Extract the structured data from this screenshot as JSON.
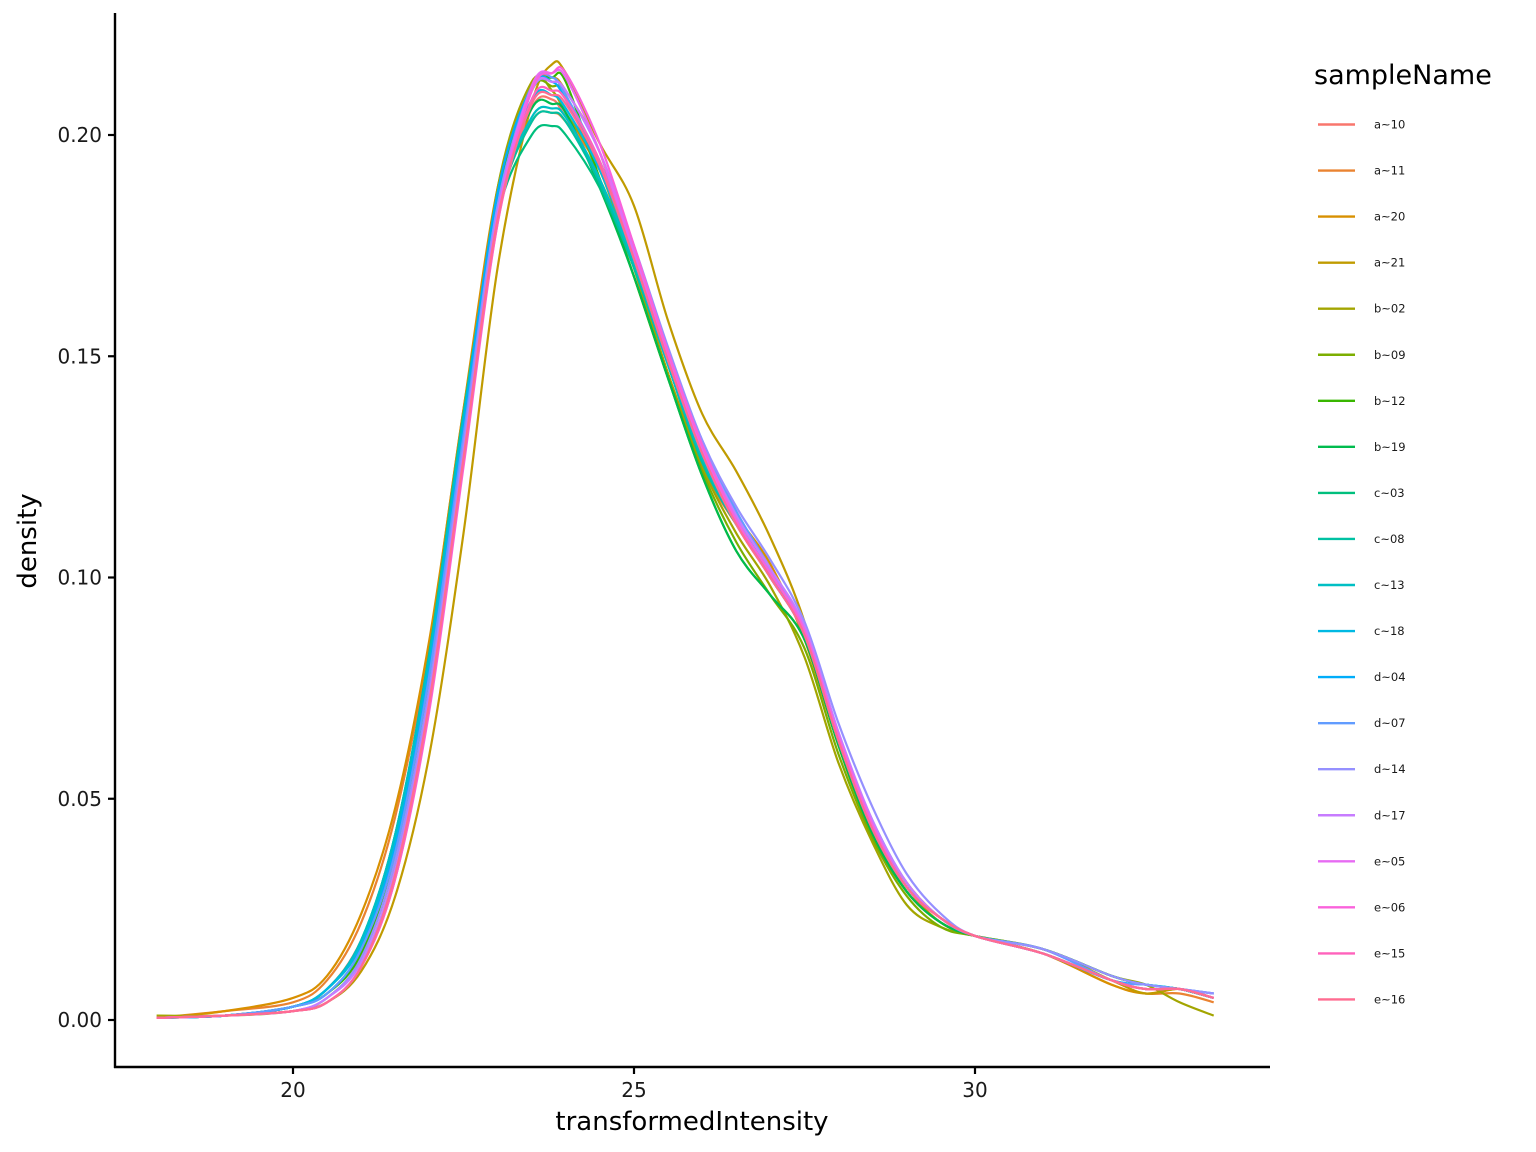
{
  "chart_data": {
    "type": "line",
    "subtype": "density",
    "title": "",
    "xlabel": "transformedIntensity",
    "ylabel": "density",
    "xlim": [
      17.2,
      34.2
    ],
    "ylim": [
      -0.011,
      0.227
    ],
    "x_ticks": [
      20,
      25,
      30
    ],
    "x_tick_labels": [
      "20",
      "25",
      "30"
    ],
    "y_ticks": [
      0.0,
      0.05,
      0.1,
      0.15,
      0.2
    ],
    "y_tick_labels": [
      "0.00",
      "0.05",
      "0.10",
      "0.15",
      "0.20"
    ],
    "grid": false,
    "legend": {
      "title": "sampleName",
      "position": "right"
    },
    "x": [
      18.0,
      19.0,
      20.0,
      20.5,
      21.0,
      21.5,
      22.0,
      22.5,
      23.0,
      23.5,
      23.8,
      24.0,
      24.5,
      25.0,
      25.5,
      26.0,
      26.5,
      27.0,
      27.5,
      28.0,
      28.5,
      29.0,
      29.5,
      30.0,
      31.0,
      32.0,
      32.5,
      33.0,
      33.5
    ],
    "series": [
      {
        "name": "a~10",
        "color": "#F8766D",
        "values": [
          0.0005,
          0.001,
          0.003,
          0.007,
          0.018,
          0.04,
          0.08,
          0.135,
          0.182,
          0.206,
          0.208,
          0.204,
          0.192,
          0.17,
          0.146,
          0.125,
          0.112,
          0.101,
          0.088,
          0.064,
          0.044,
          0.031,
          0.023,
          0.019,
          0.015,
          0.009,
          0.007,
          0.007,
          0.005
        ]
      },
      {
        "name": "a~11",
        "color": "#EA8331",
        "values": [
          0.0005,
          0.002,
          0.004,
          0.009,
          0.022,
          0.046,
          0.085,
          0.138,
          0.183,
          0.203,
          0.205,
          0.203,
          0.192,
          0.17,
          0.146,
          0.125,
          0.112,
          0.101,
          0.088,
          0.064,
          0.044,
          0.031,
          0.023,
          0.019,
          0.015,
          0.008,
          0.006,
          0.006,
          0.004
        ]
      },
      {
        "name": "a~20",
        "color": "#D89000",
        "values": [
          0.0005,
          0.002,
          0.005,
          0.01,
          0.024,
          0.048,
          0.086,
          0.138,
          0.188,
          0.211,
          0.213,
          0.21,
          0.196,
          0.17,
          0.146,
          0.126,
          0.114,
          0.103,
          0.086,
          0.062,
          0.043,
          0.03,
          0.022,
          0.019,
          0.015,
          0.008,
          0.006,
          0.007,
          0.005
        ]
      },
      {
        "name": "a~21",
        "color": "#C09B00",
        "values": [
          0.0005,
          0.001,
          0.002,
          0.004,
          0.011,
          0.028,
          0.06,
          0.11,
          0.17,
          0.207,
          0.216,
          0.214,
          0.198,
          0.184,
          0.158,
          0.137,
          0.124,
          0.109,
          0.09,
          0.062,
          0.042,
          0.029,
          0.022,
          0.019,
          0.016,
          0.009,
          0.006,
          0.007,
          0.005
        ]
      },
      {
        "name": "b~02",
        "color": "#A3A500",
        "values": [
          0.001,
          0.001,
          0.002,
          0.005,
          0.014,
          0.036,
          0.076,
          0.132,
          0.188,
          0.212,
          0.21,
          0.205,
          0.192,
          0.17,
          0.146,
          0.125,
          0.11,
          0.098,
          0.082,
          0.058,
          0.04,
          0.026,
          0.021,
          0.019,
          0.016,
          0.01,
          0.008,
          0.004,
          0.001
        ]
      },
      {
        "name": "b~09",
        "color": "#7CAE00",
        "values": [
          0.0005,
          0.001,
          0.002,
          0.004,
          0.012,
          0.034,
          0.074,
          0.13,
          0.184,
          0.21,
          0.211,
          0.209,
          0.19,
          0.168,
          0.145,
          0.124,
          0.108,
          0.096,
          0.084,
          0.06,
          0.041,
          0.028,
          0.021,
          0.019,
          0.016,
          0.01,
          0.008,
          0.007,
          0.005
        ]
      },
      {
        "name": "b~12",
        "color": "#39B600",
        "values": [
          0.0005,
          0.001,
          0.003,
          0.006,
          0.015,
          0.038,
          0.078,
          0.133,
          0.186,
          0.21,
          0.213,
          0.212,
          0.19,
          0.168,
          0.145,
          0.123,
          0.106,
          0.096,
          0.086,
          0.062,
          0.042,
          0.029,
          0.022,
          0.019,
          0.016,
          0.01,
          0.008,
          0.007,
          0.005
        ]
      },
      {
        "name": "b~19",
        "color": "#00BB4E",
        "values": [
          0.0005,
          0.001,
          0.003,
          0.007,
          0.017,
          0.04,
          0.08,
          0.134,
          0.185,
          0.206,
          0.207,
          0.205,
          0.188,
          0.168,
          0.145,
          0.123,
          0.106,
          0.096,
          0.086,
          0.062,
          0.042,
          0.029,
          0.022,
          0.019,
          0.016,
          0.01,
          0.008,
          0.007,
          0.005
        ]
      },
      {
        "name": "c~03",
        "color": "#00BF7D",
        "values": [
          0.0005,
          0.001,
          0.003,
          0.007,
          0.018,
          0.042,
          0.083,
          0.137,
          0.182,
          0.2,
          0.202,
          0.2,
          0.188,
          0.17,
          0.148,
          0.126,
          0.112,
          0.1,
          0.087,
          0.063,
          0.043,
          0.03,
          0.023,
          0.019,
          0.015,
          0.009,
          0.007,
          0.007,
          0.005
        ]
      },
      {
        "name": "c~08",
        "color": "#00C1A3",
        "values": [
          0.0005,
          0.001,
          0.003,
          0.007,
          0.018,
          0.042,
          0.083,
          0.137,
          0.183,
          0.203,
          0.205,
          0.203,
          0.189,
          0.17,
          0.148,
          0.126,
          0.112,
          0.1,
          0.087,
          0.063,
          0.043,
          0.03,
          0.023,
          0.019,
          0.015,
          0.009,
          0.007,
          0.007,
          0.005
        ]
      },
      {
        "name": "c~13",
        "color": "#00BFC4",
        "values": [
          0.0005,
          0.001,
          0.003,
          0.007,
          0.018,
          0.042,
          0.082,
          0.136,
          0.184,
          0.204,
          0.206,
          0.204,
          0.19,
          0.171,
          0.148,
          0.127,
          0.112,
          0.1,
          0.087,
          0.063,
          0.043,
          0.03,
          0.023,
          0.019,
          0.015,
          0.009,
          0.008,
          0.007,
          0.005
        ]
      },
      {
        "name": "c~18",
        "color": "#00B9E3",
        "values": [
          0.0005,
          0.001,
          0.003,
          0.007,
          0.017,
          0.04,
          0.08,
          0.134,
          0.185,
          0.208,
          0.209,
          0.206,
          0.192,
          0.172,
          0.149,
          0.128,
          0.113,
          0.101,
          0.087,
          0.063,
          0.043,
          0.03,
          0.023,
          0.019,
          0.015,
          0.009,
          0.008,
          0.007,
          0.005
        ]
      },
      {
        "name": "d~04",
        "color": "#00ADFA",
        "values": [
          0.0005,
          0.001,
          0.003,
          0.006,
          0.016,
          0.039,
          0.079,
          0.134,
          0.187,
          0.211,
          0.212,
          0.208,
          0.193,
          0.173,
          0.15,
          0.13,
          0.114,
          0.102,
          0.088,
          0.064,
          0.044,
          0.03,
          0.023,
          0.019,
          0.015,
          0.009,
          0.008,
          0.007,
          0.006
        ]
      },
      {
        "name": "d~07",
        "color": "#619CFF",
        "values": [
          0.0005,
          0.001,
          0.003,
          0.006,
          0.016,
          0.038,
          0.078,
          0.132,
          0.184,
          0.211,
          0.213,
          0.209,
          0.194,
          0.174,
          0.151,
          0.131,
          0.115,
          0.102,
          0.088,
          0.064,
          0.045,
          0.031,
          0.023,
          0.019,
          0.016,
          0.009,
          0.008,
          0.007,
          0.006
        ]
      },
      {
        "name": "d~14",
        "color": "#9590FF",
        "values": [
          0.0005,
          0.001,
          0.002,
          0.005,
          0.014,
          0.036,
          0.075,
          0.13,
          0.184,
          0.21,
          0.212,
          0.21,
          0.196,
          0.175,
          0.152,
          0.131,
          0.116,
          0.104,
          0.09,
          0.067,
          0.048,
          0.033,
          0.024,
          0.019,
          0.016,
          0.01,
          0.008,
          0.007,
          0.006
        ]
      },
      {
        "name": "d~17",
        "color": "#C77CFF",
        "values": [
          0.0005,
          0.001,
          0.002,
          0.005,
          0.013,
          0.034,
          0.073,
          0.128,
          0.182,
          0.21,
          0.212,
          0.21,
          0.196,
          0.174,
          0.151,
          0.13,
          0.114,
          0.102,
          0.089,
          0.065,
          0.045,
          0.031,
          0.023,
          0.019,
          0.015,
          0.009,
          0.007,
          0.007,
          0.005
        ]
      },
      {
        "name": "e~05",
        "color": "#E76BF3",
        "values": [
          0.0005,
          0.001,
          0.002,
          0.004,
          0.012,
          0.032,
          0.071,
          0.126,
          0.182,
          0.211,
          0.214,
          0.213,
          0.196,
          0.173,
          0.15,
          0.129,
          0.113,
          0.101,
          0.088,
          0.064,
          0.044,
          0.03,
          0.023,
          0.019,
          0.015,
          0.009,
          0.007,
          0.007,
          0.005
        ]
      },
      {
        "name": "e~06",
        "color": "#FA62DB",
        "values": [
          0.0005,
          0.001,
          0.002,
          0.004,
          0.012,
          0.032,
          0.07,
          0.125,
          0.18,
          0.21,
          0.214,
          0.214,
          0.198,
          0.175,
          0.151,
          0.13,
          0.113,
          0.101,
          0.088,
          0.064,
          0.044,
          0.03,
          0.023,
          0.019,
          0.015,
          0.009,
          0.007,
          0.007,
          0.005
        ]
      },
      {
        "name": "e~15",
        "color": "#FF62BC",
        "values": [
          0.0005,
          0.001,
          0.002,
          0.004,
          0.012,
          0.032,
          0.071,
          0.126,
          0.18,
          0.208,
          0.21,
          0.208,
          0.194,
          0.172,
          0.149,
          0.128,
          0.112,
          0.1,
          0.087,
          0.063,
          0.043,
          0.03,
          0.023,
          0.019,
          0.015,
          0.009,
          0.007,
          0.007,
          0.005
        ]
      },
      {
        "name": "e~16",
        "color": "#FF6C91",
        "values": [
          0.0005,
          0.001,
          0.002,
          0.004,
          0.012,
          0.033,
          0.072,
          0.127,
          0.181,
          0.207,
          0.209,
          0.207,
          0.193,
          0.172,
          0.149,
          0.128,
          0.112,
          0.1,
          0.087,
          0.063,
          0.043,
          0.03,
          0.023,
          0.019,
          0.015,
          0.009,
          0.007,
          0.007,
          0.005
        ]
      }
    ]
  }
}
